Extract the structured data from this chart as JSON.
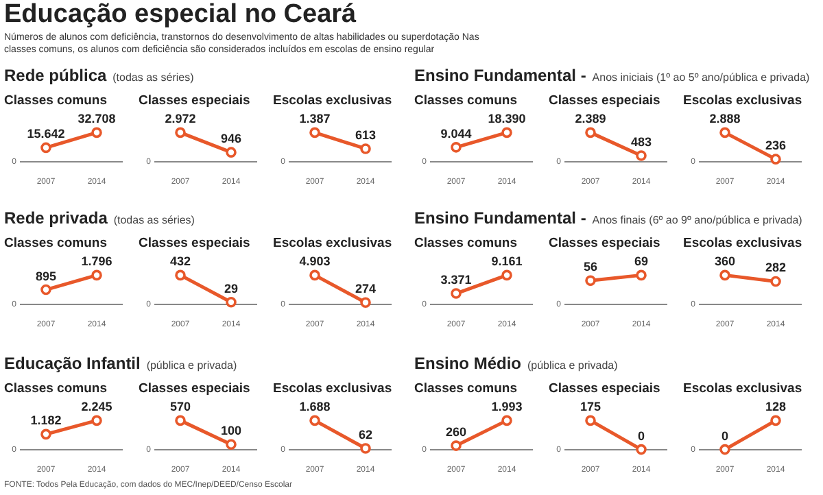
{
  "chart_data": [
    {
      "type": "other",
      "title": "Educação especial no Ceará",
      "subtitle": "Números de alunos com deficiência, transtornos do desenvolvimento de altas habilidades ou superdotação Nas classes comuns, os alunos com deficiência são considerados incluídos em escolas de ensino regular",
      "annotations": [
        "FONTE: Todos Pela Educação, com dados do MEC/Inep/DEED/Censo Escolar"
      ]
    },
    {
      "type": "other",
      "title": "Rede pública",
      "subtitle": "(todas as séries)"
    },
    {
      "type": "line",
      "title": "Classes comuns",
      "categories": [
        "2007",
        "2014"
      ],
      "values": [
        15642,
        32708
      ],
      "value_labels": [
        "15.642",
        "32.708"
      ],
      "color": "#e8582a",
      "marker": "circle",
      "annotations": [
        "0"
      ]
    },
    {
      "type": "line",
      "title": "Classes especiais",
      "categories": [
        "2007",
        "2014"
      ],
      "values": [
        2972,
        946
      ],
      "value_labels": [
        "2.972",
        "946"
      ],
      "color": "#e8582a",
      "marker": "circle",
      "annotations": [
        "0"
      ]
    },
    {
      "type": "line",
      "title": "Escolas exclusivas",
      "categories": [
        "2007",
        "2014"
      ],
      "values": [
        1387,
        613
      ],
      "value_labels": [
        "1.387",
        "613"
      ],
      "color": "#e8582a",
      "marker": "circle",
      "annotations": [
        "0"
      ]
    },
    {
      "type": "other",
      "title": "Ensino Fundamental -",
      "subtitle": "Anos iniciais (1º ao 5º ano/pública e privada)"
    },
    {
      "type": "line",
      "title": "Classes comuns",
      "categories": [
        "2007",
        "2014"
      ],
      "values": [
        9044,
        18390
      ],
      "value_labels": [
        "9.044",
        "18.390"
      ],
      "color": "#e8582a",
      "marker": "circle",
      "annotations": [
        "0"
      ]
    },
    {
      "type": "line",
      "title": "Classes especiais",
      "categories": [
        "2007",
        "2014"
      ],
      "values": [
        2389,
        483
      ],
      "value_labels": [
        "2.389",
        "483"
      ],
      "color": "#e8582a",
      "marker": "circle",
      "annotations": [
        "0"
      ]
    },
    {
      "type": "line",
      "title": "Escolas exclusivas",
      "categories": [
        "2007",
        "2014"
      ],
      "values": [
        2888,
        236
      ],
      "value_labels": [
        "2.888",
        "236"
      ],
      "color": "#e8582a",
      "marker": "circle",
      "annotations": [
        "0"
      ]
    },
    {
      "type": "other",
      "title": "Rede privada",
      "subtitle": "(todas as séries)"
    },
    {
      "type": "line",
      "title": "Classes comuns",
      "categories": [
        "2007",
        "2014"
      ],
      "values": [
        895,
        1796
      ],
      "value_labels": [
        "895",
        "1.796"
      ],
      "color": "#e8582a",
      "marker": "circle",
      "annotations": [
        "0"
      ]
    },
    {
      "type": "line",
      "title": "Classes especiais",
      "categories": [
        "2007",
        "2014"
      ],
      "values": [
        432,
        29
      ],
      "value_labels": [
        "432",
        "29"
      ],
      "color": "#e8582a",
      "marker": "circle",
      "annotations": [
        "0"
      ]
    },
    {
      "type": "line",
      "title": "Escolas exclusivas",
      "categories": [
        "2007",
        "2014"
      ],
      "values": [
        4903,
        274
      ],
      "value_labels": [
        "4.903",
        "274"
      ],
      "color": "#e8582a",
      "marker": "circle",
      "annotations": [
        "0"
      ]
    },
    {
      "type": "other",
      "title": "Ensino Fundamental -",
      "subtitle": "Anos finais (6º ao 9º ano/pública e privada)"
    },
    {
      "type": "line",
      "title": "Classes comuns",
      "categories": [
        "2007",
        "2014"
      ],
      "values": [
        3371,
        9161
      ],
      "value_labels": [
        "3.371",
        "9.161"
      ],
      "color": "#e8582a",
      "marker": "circle",
      "annotations": [
        "0"
      ]
    },
    {
      "type": "line",
      "title": "Classes especiais",
      "categories": [
        "2007",
        "2014"
      ],
      "values": [
        56,
        69
      ],
      "value_labels": [
        "56",
        "69"
      ],
      "color": "#e8582a",
      "marker": "circle",
      "annotations": [
        "0"
      ]
    },
    {
      "type": "line",
      "title": "Escolas exclusivas",
      "categories": [
        "2007",
        "2014"
      ],
      "values": [
        360,
        282
      ],
      "value_labels": [
        "360",
        "282"
      ],
      "color": "#e8582a",
      "marker": "circle",
      "annotations": [
        "0"
      ]
    },
    {
      "type": "other",
      "title": "Educação Infantil",
      "subtitle": "(pública e privada)"
    },
    {
      "type": "line",
      "title": "Classes comuns",
      "categories": [
        "2007",
        "2014"
      ],
      "values": [
        1182,
        2245
      ],
      "value_labels": [
        "1.182",
        "2.245"
      ],
      "color": "#e8582a",
      "marker": "circle",
      "annotations": [
        "0"
      ]
    },
    {
      "type": "line",
      "title": "Classes especiais",
      "categories": [
        "2007",
        "2014"
      ],
      "values": [
        570,
        100
      ],
      "value_labels": [
        "570",
        "100"
      ],
      "color": "#e8582a",
      "marker": "circle",
      "annotations": [
        "0"
      ]
    },
    {
      "type": "line",
      "title": "Escolas exclusivas",
      "categories": [
        "2007",
        "2014"
      ],
      "values": [
        1688,
        62
      ],
      "value_labels": [
        "1.688",
        "62"
      ],
      "color": "#e8582a",
      "marker": "circle",
      "annotations": [
        "0"
      ]
    },
    {
      "type": "other",
      "title": "Ensino Médio",
      "subtitle": "(pública e privada)"
    },
    {
      "type": "line",
      "title": "Classes comuns",
      "categories": [
        "2007",
        "2014"
      ],
      "values": [
        260,
        1993
      ],
      "value_labels": [
        "260",
        "1.993"
      ],
      "color": "#e8582a",
      "marker": "circle",
      "annotations": [
        "0"
      ]
    },
    {
      "type": "line",
      "title": "Classes especiais",
      "categories": [
        "2007",
        "2014"
      ],
      "values": [
        175,
        0
      ],
      "value_labels": [
        "175",
        "0"
      ],
      "color": "#e8582a",
      "marker": "circle",
      "annotations": [
        "0"
      ]
    },
    {
      "type": "line",
      "title": "Escolas exclusivas",
      "categories": [
        "2007",
        "2014"
      ],
      "values": [
        0,
        128
      ],
      "value_labels": [
        "0",
        "128"
      ],
      "color": "#e8582a",
      "marker": "circle",
      "annotations": [
        "0"
      ]
    }
  ]
}
